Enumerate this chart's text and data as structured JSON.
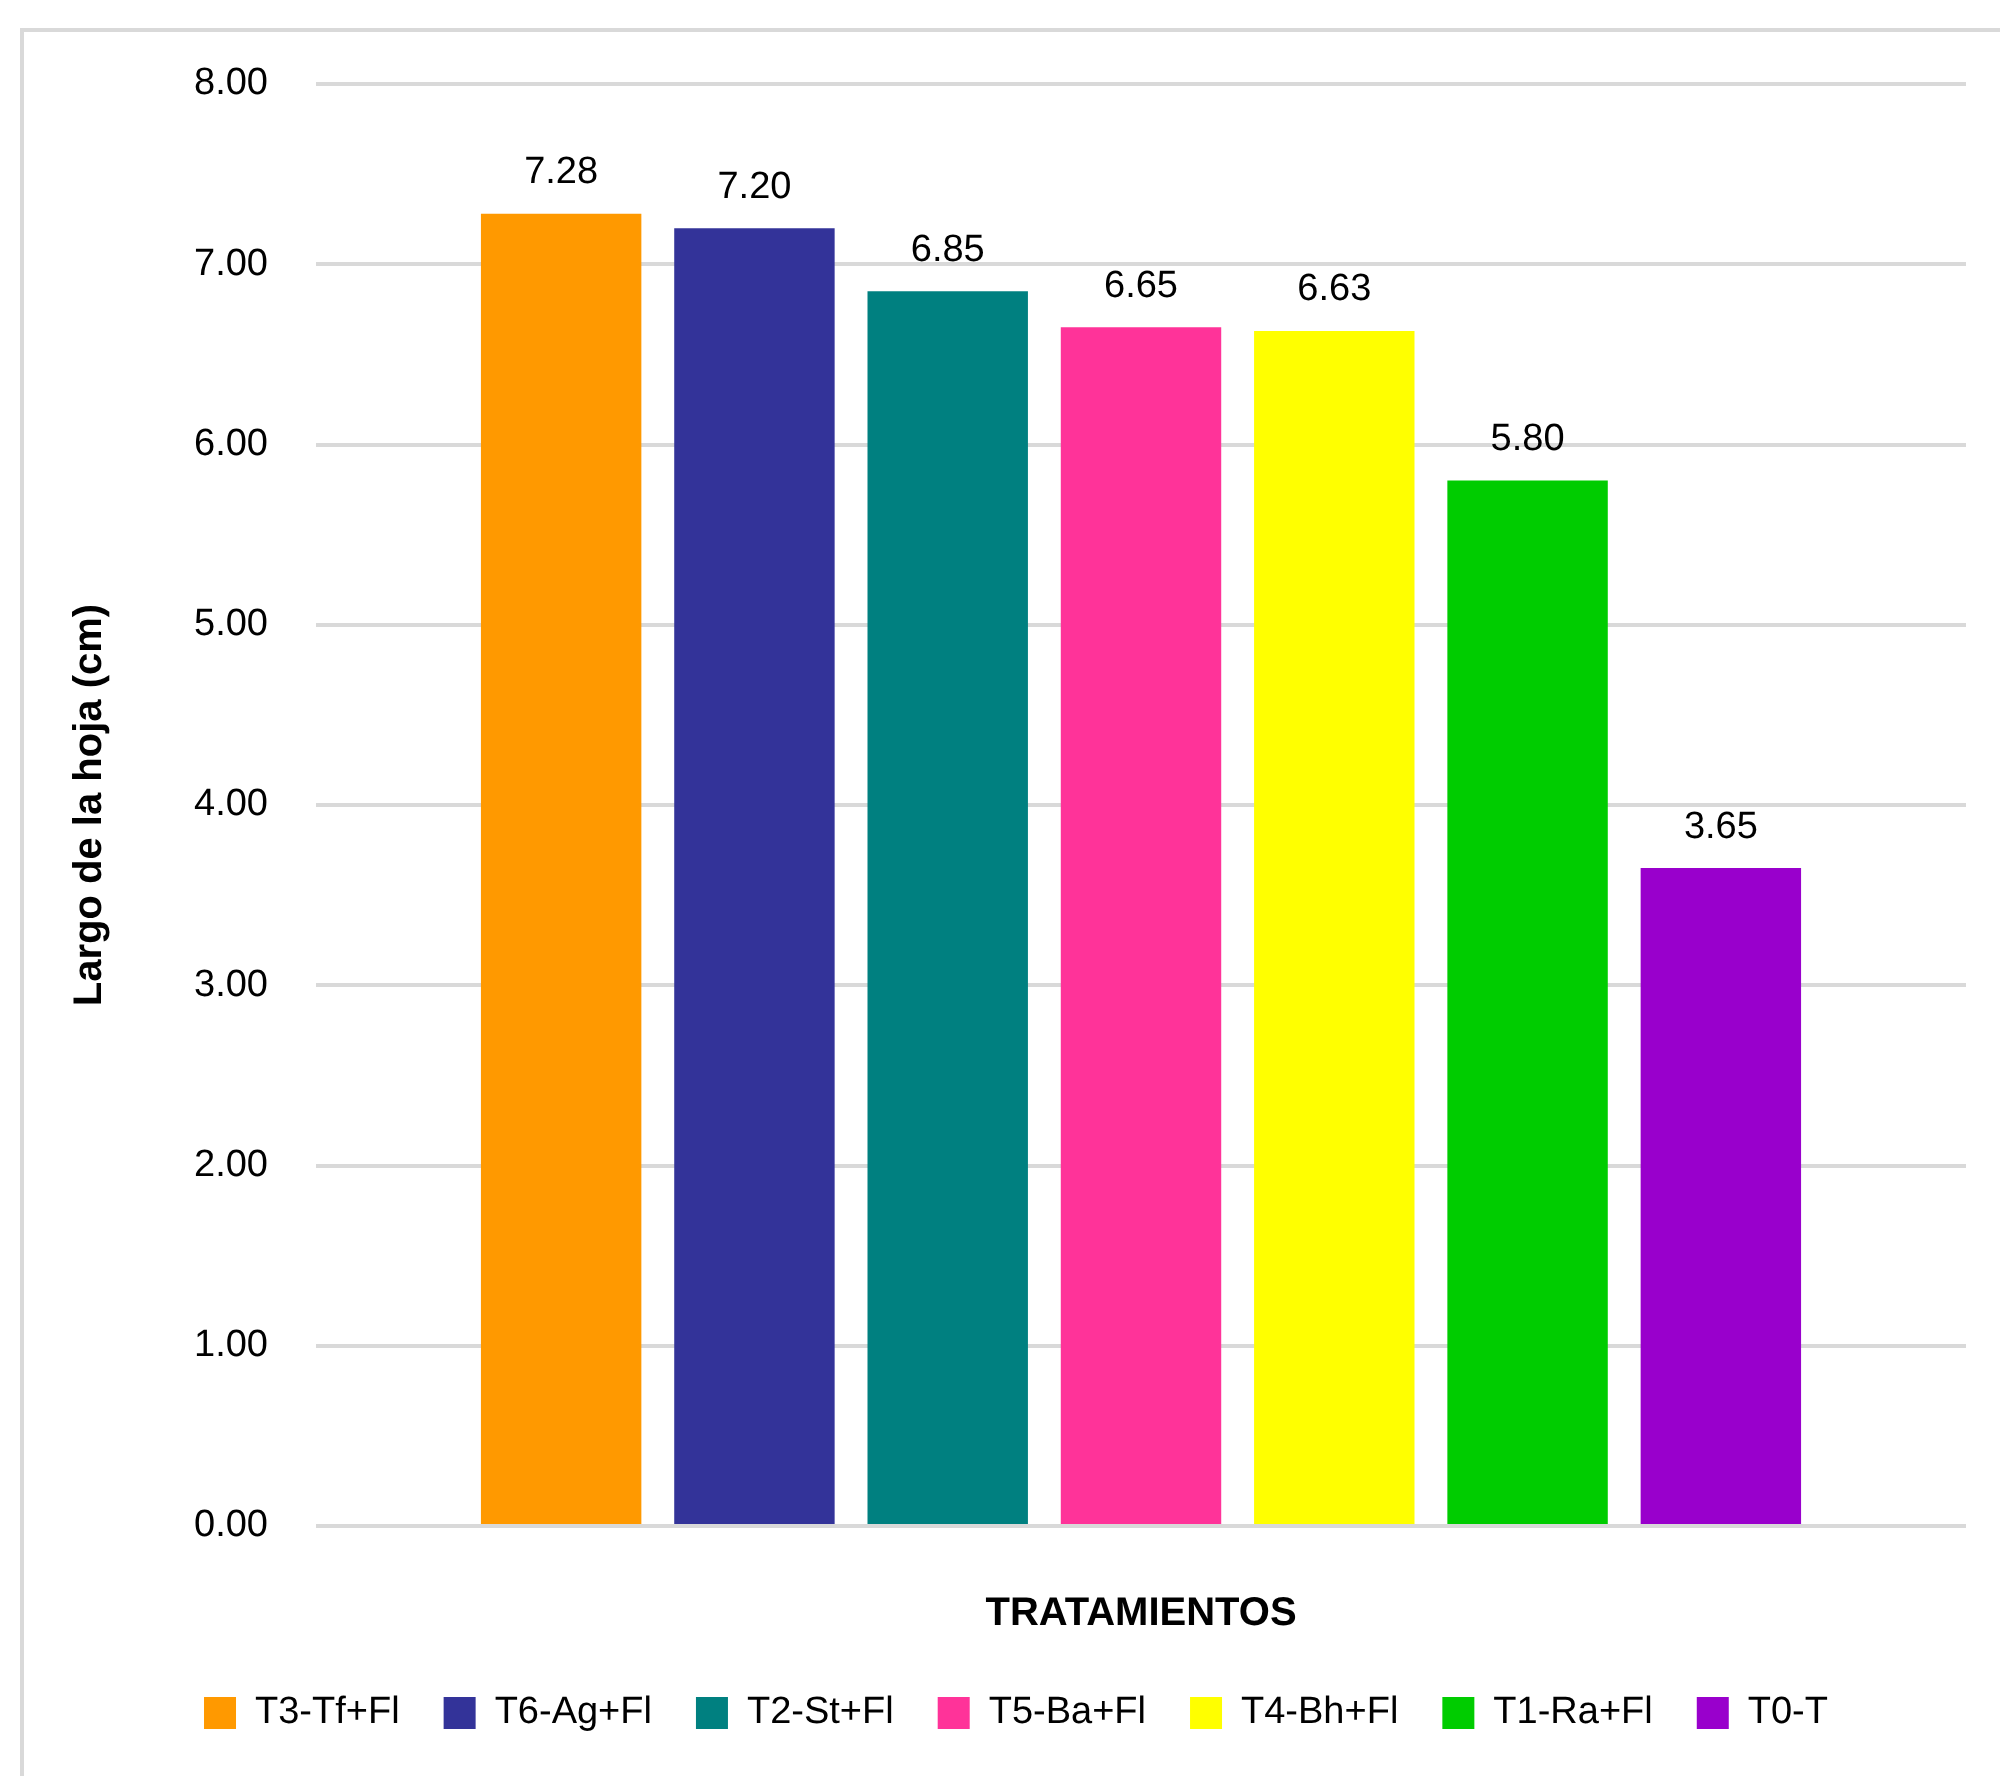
{
  "chart_data": {
    "type": "bar",
    "xlabel": "TRATAMIENTOS",
    "ylabel": "Largo de la hoja (cm)",
    "categories": [
      null
    ],
    "series": [
      {
        "name": "T3-Tf+Fl",
        "color": "#ff9900",
        "values": [
          7.28
        ],
        "value_labels": [
          "7.28"
        ]
      },
      {
        "name": "T6-Ag+Fl",
        "color": "#333399",
        "values": [
          7.2
        ],
        "value_labels": [
          "7.20"
        ]
      },
      {
        "name": "T2-St+Fl",
        "color": "#008080",
        "values": [
          6.85
        ],
        "value_labels": [
          "6.85"
        ]
      },
      {
        "name": "T5-Ba+Fl",
        "color": "#ff3399",
        "values": [
          6.65
        ],
        "value_labels": [
          "6.65"
        ]
      },
      {
        "name": "T4-Bh+Fl",
        "color": "#ffff00",
        "values": [
          6.63
        ],
        "value_labels": [
          "6.63"
        ]
      },
      {
        "name": "T1-Ra+Fl",
        "color": "#00cc00",
        "values": [
          5.8
        ],
        "value_labels": [
          "5.80"
        ]
      },
      {
        "name": "T0-T",
        "color": "#9900cc",
        "values": [
          3.65
        ],
        "value_labels": [
          "3.65"
        ]
      }
    ],
    "ylim": [
      0,
      8
    ],
    "yticks": [
      {
        "value": 0,
        "label": "0.00"
      },
      {
        "value": 1,
        "label": "1.00"
      },
      {
        "value": 2,
        "label": "2.00"
      },
      {
        "value": 3,
        "label": "3.00"
      },
      {
        "value": 4,
        "label": "4.00"
      },
      {
        "value": 5,
        "label": "5.00"
      },
      {
        "value": 6,
        "label": "6.00"
      },
      {
        "value": 7,
        "label": "7.00"
      },
      {
        "value": 8,
        "label": "8.00"
      }
    ],
    "grid": "y",
    "legend": "bottom",
    "tick_labels": "y"
  }
}
